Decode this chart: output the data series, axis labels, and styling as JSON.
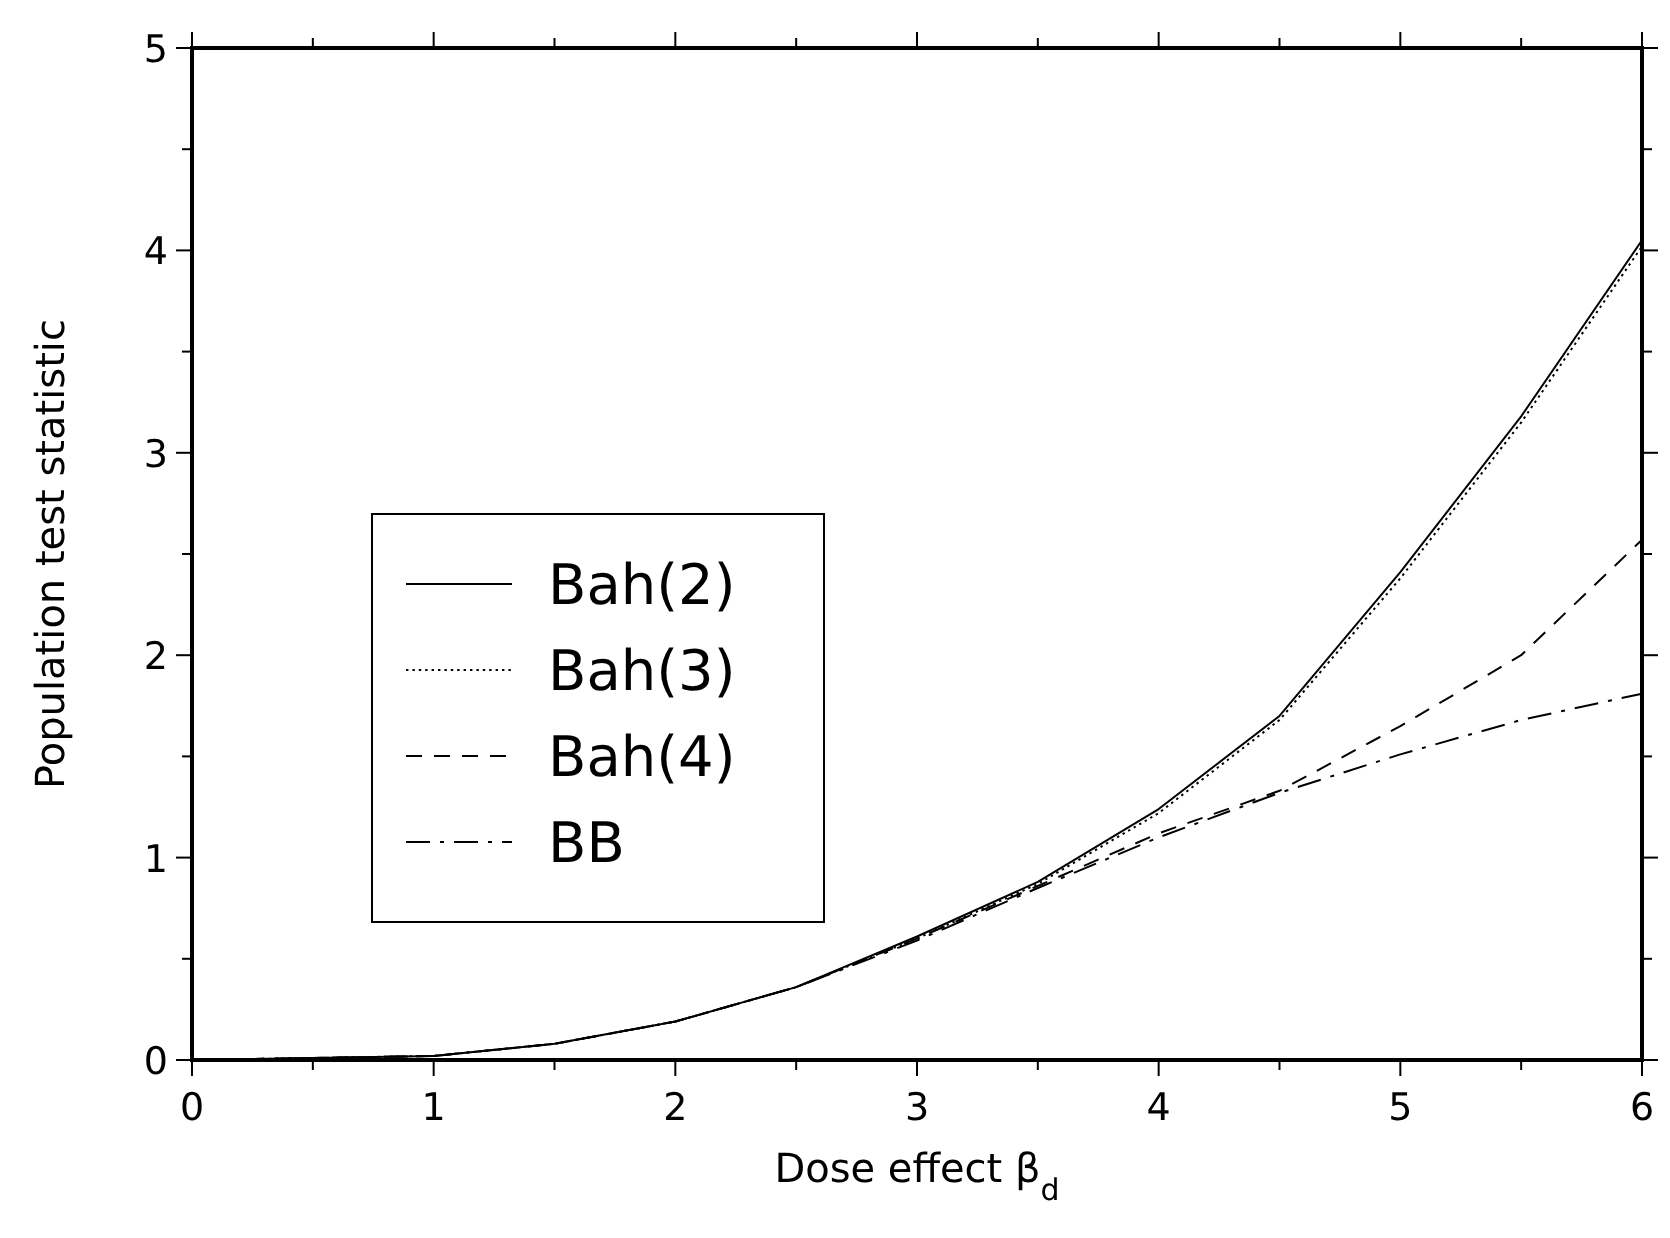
{
  "chart_data": {
    "type": "line",
    "xlabel": "Dose effect β$_{d}$",
    "ylabel": "Population test statistic",
    "x": [
      0,
      0.5,
      1,
      1.5,
      2,
      2.5,
      3,
      3.5,
      4,
      4.5,
      5,
      5.5,
      6
    ],
    "series": [
      {
        "name": "Bah(2)",
        "color": "#000000",
        "line_style": "solid",
        "values": [
          0,
          0.01,
          0.02,
          0.08,
          0.19,
          0.36,
          0.61,
          0.88,
          1.24,
          1.7,
          2.41,
          3.18,
          4.05
        ]
      },
      {
        "name": "Bah(3)",
        "color": "#000000",
        "line_style": "dotted",
        "values": [
          0,
          0.01,
          0.02,
          0.08,
          0.19,
          0.36,
          0.6,
          0.87,
          1.22,
          1.68,
          2.38,
          3.15,
          4.02
        ]
      },
      {
        "name": "Bah(4)",
        "color": "#000000",
        "line_style": "dashed",
        "values": [
          0,
          0.01,
          0.02,
          0.08,
          0.19,
          0.36,
          0.6,
          0.86,
          1.12,
          1.33,
          1.65,
          2.0,
          2.57
        ]
      },
      {
        "name": "BB",
        "color": "#000000",
        "line_style": "dashdot",
        "values": [
          0,
          0.01,
          0.02,
          0.08,
          0.19,
          0.36,
          0.59,
          0.85,
          1.1,
          1.32,
          1.51,
          1.68,
          1.81
        ]
      }
    ],
    "xlim": [
      0,
      6
    ],
    "ylim": [
      0,
      5
    ],
    "xticks": [
      0,
      {
        "value": 0.5,
        "label": null
      },
      1,
      {
        "value": 1.5,
        "label": null
      },
      2,
      {
        "value": 2.5,
        "label": null
      },
      3,
      {
        "value": 3.5,
        "label": null
      },
      4,
      {
        "value": 4.5,
        "label": null
      },
      5,
      {
        "value": 5.5,
        "label": null
      },
      6
    ],
    "yticks": [
      0,
      {
        "value": 0.5,
        "label": null
      },
      1,
      {
        "value": 1.5,
        "label": null
      },
      2,
      {
        "value": 2.5,
        "label": null
      },
      3,
      {
        "value": 3.5,
        "label": null
      },
      4,
      {
        "value": 4.5,
        "label": null
      },
      5
    ],
    "grid": false,
    "legend": "center left",
    "marker": "none"
  }
}
